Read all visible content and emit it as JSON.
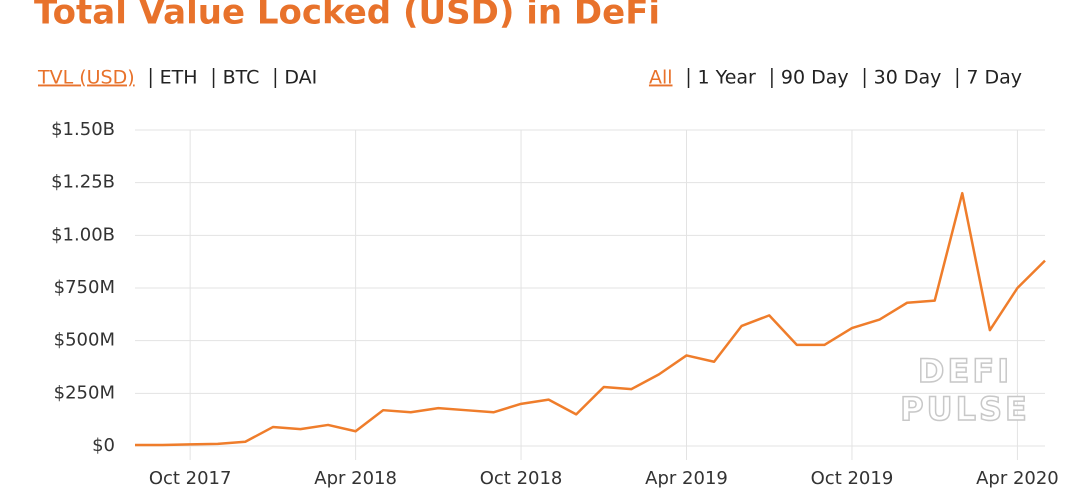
{
  "ui": {
    "metric_tabs": [
      "TVL (USD)",
      "ETH",
      "BTC",
      "DAI"
    ],
    "range_tabs": [
      "All",
      "1 Year",
      "90 Day",
      "30 Day",
      "7 Day"
    ]
  },
  "chart_data": {
    "type": "line",
    "title": "Total Value Locked (USD) in DeFi",
    "x": [
      "2017-08",
      "2017-09",
      "2017-10",
      "2017-11",
      "2017-12",
      "2018-01",
      "2018-02",
      "2018-03",
      "2018-04",
      "2018-05",
      "2018-06",
      "2018-07",
      "2018-08",
      "2018-09",
      "2018-10",
      "2018-11",
      "2018-12",
      "2019-01",
      "2019-02",
      "2019-03",
      "2019-04",
      "2019-05",
      "2019-06",
      "2019-07",
      "2019-08",
      "2019-09",
      "2019-10",
      "2019-11",
      "2019-12",
      "2020-01",
      "2020-02",
      "2020-03",
      "2020-04",
      "2020-05"
    ],
    "series": [
      {
        "name": "TVL (USD)",
        "color": "#ef7d2b",
        "values": [
          5000000,
          5000000,
          8000000,
          10000000,
          20000000,
          90000000,
          80000000,
          100000000,
          70000000,
          170000000,
          160000000,
          180000000,
          170000000,
          160000000,
          200000000,
          220000000,
          150000000,
          280000000,
          270000000,
          340000000,
          430000000,
          400000000,
          570000000,
          620000000,
          480000000,
          480000000,
          560000000,
          600000000,
          680000000,
          690000000,
          1200000000,
          550000000,
          750000000,
          880000000
        ]
      }
    ],
    "xlim": [
      "2017-08",
      "2020-05"
    ],
    "xticks": [
      {
        "value": "2017-10",
        "label": "Oct 2017"
      },
      {
        "value": "2018-04",
        "label": "Apr 2018"
      },
      {
        "value": "2018-10",
        "label": "Oct 2018"
      },
      {
        "value": "2019-04",
        "label": "Apr 2019"
      },
      {
        "value": "2019-10",
        "label": "Oct 2019"
      },
      {
        "value": "2020-04",
        "label": "Apr 2020"
      }
    ],
    "ylim": [
      0,
      1500000000
    ],
    "yticks": [
      {
        "value": 0,
        "label": "$0"
      },
      {
        "value": 250000000,
        "label": "$250M"
      },
      {
        "value": 500000000,
        "label": "$500M"
      },
      {
        "value": 750000000,
        "label": "$750M"
      },
      {
        "value": 1000000000,
        "label": "$1.00B"
      },
      {
        "value": 1250000000,
        "label": "$1.25B"
      },
      {
        "value": 1500000000,
        "label": "$1.50B"
      }
    ],
    "grid": true,
    "watermark": [
      "DEFI",
      "PULSE"
    ]
  }
}
